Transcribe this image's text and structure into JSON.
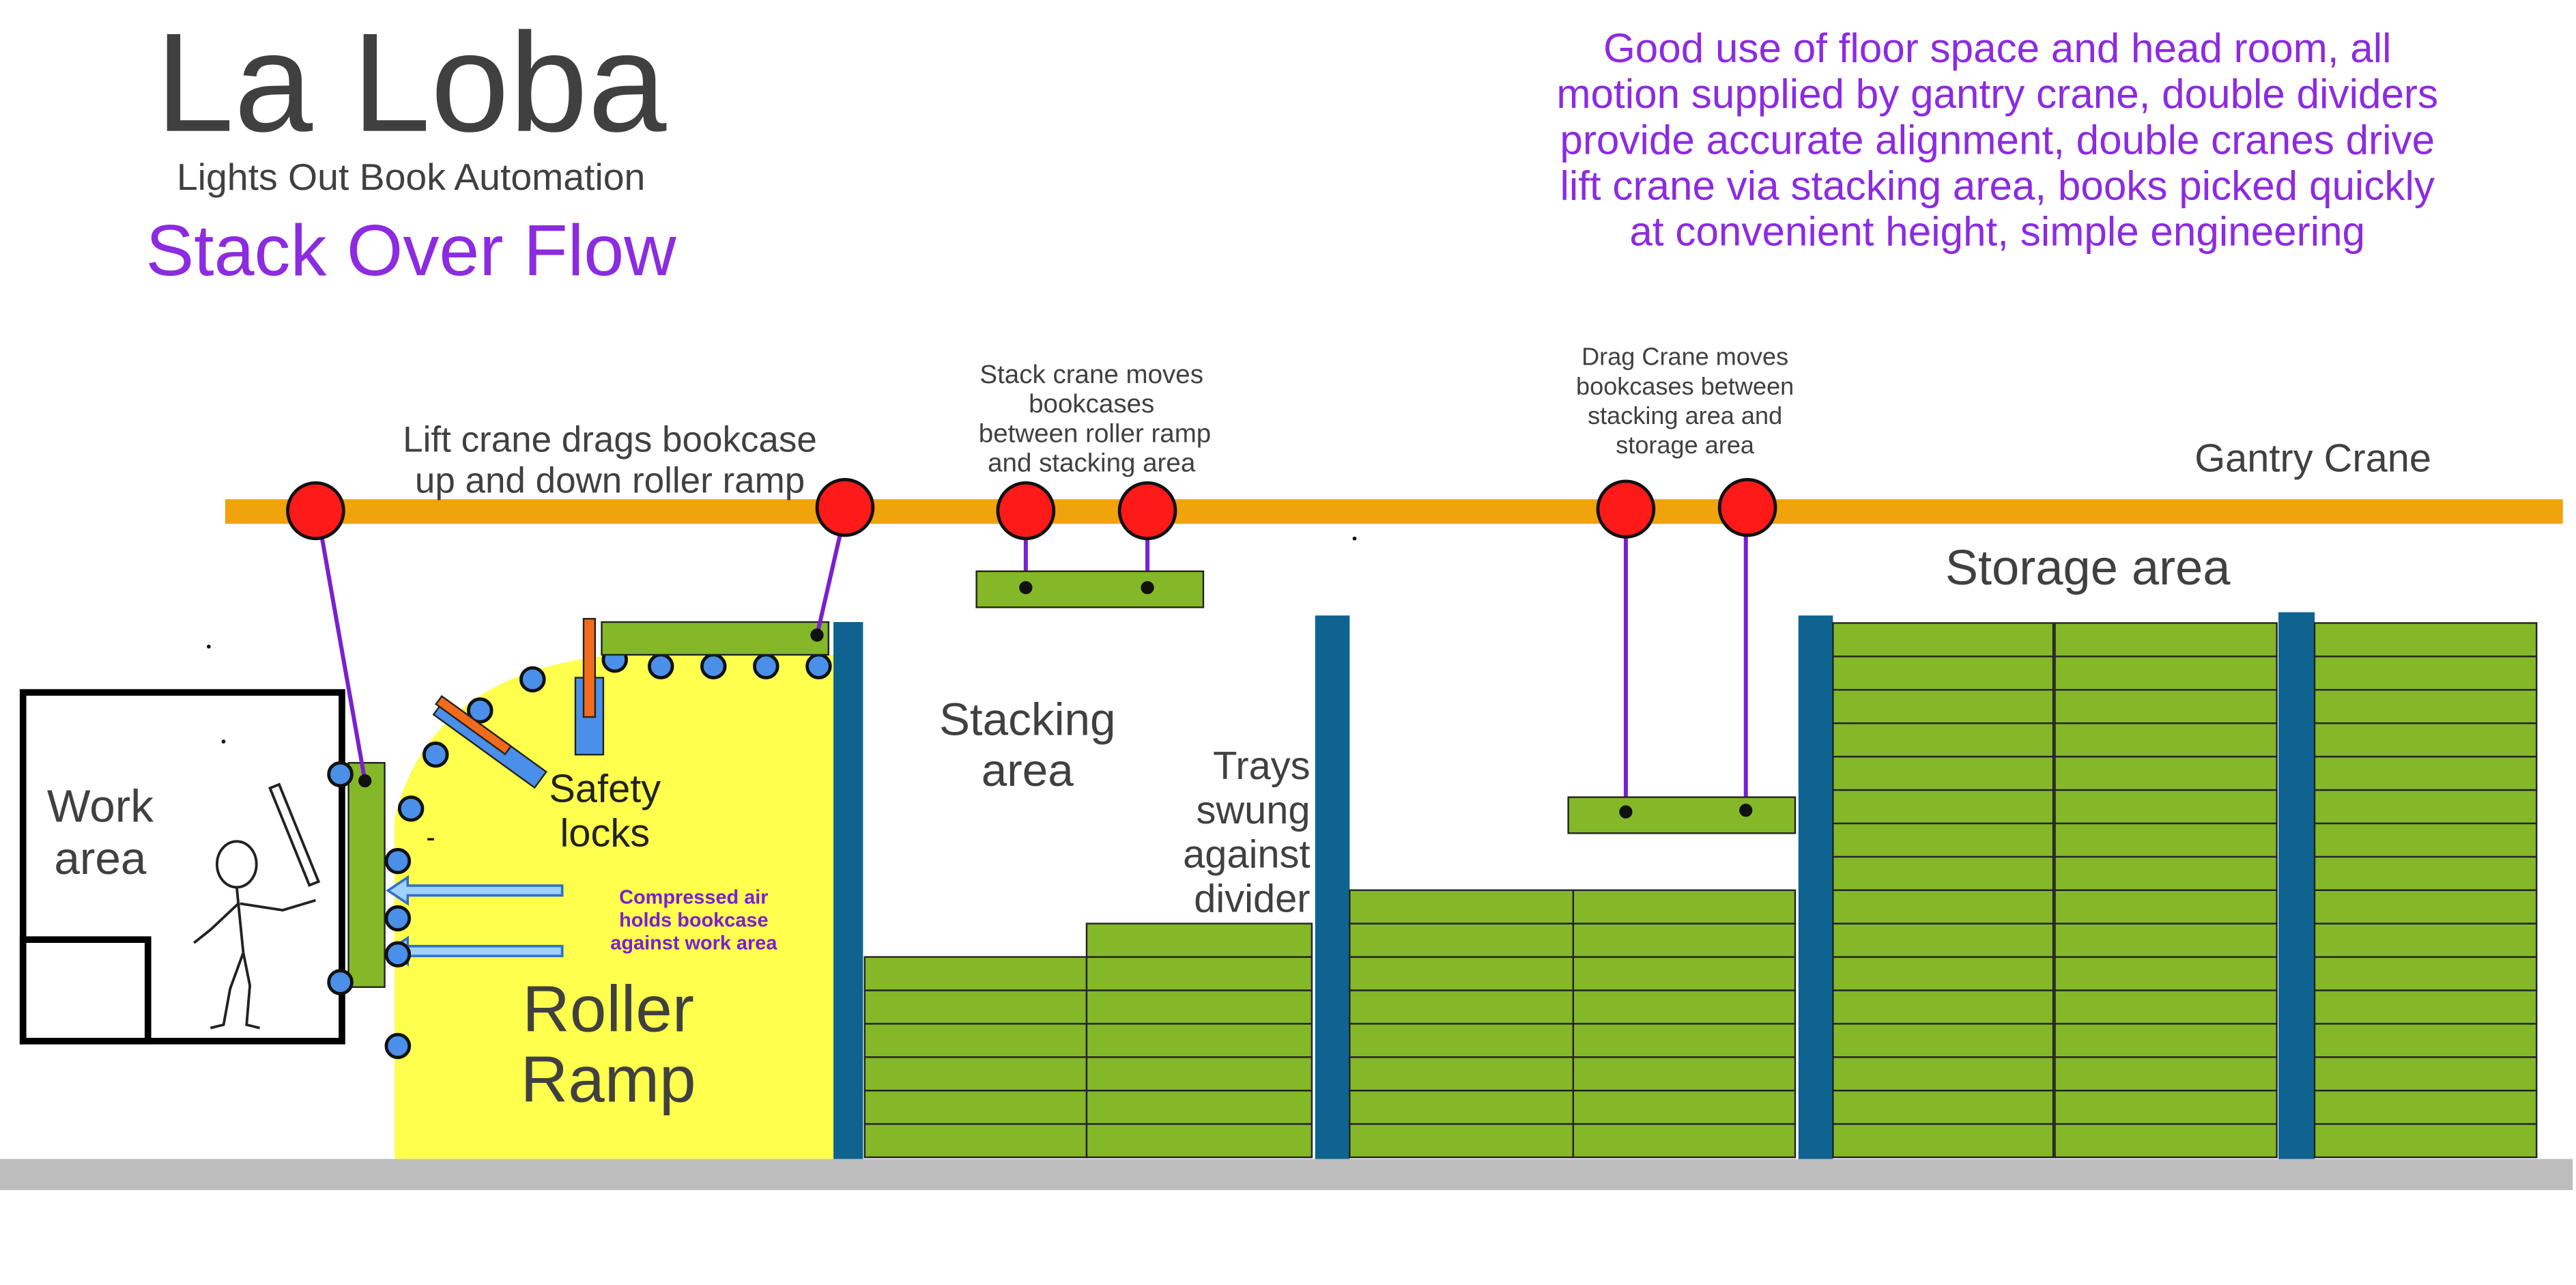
{
  "header": {
    "title": "La Loba",
    "subtitle": "Lights Out Book Automation",
    "tagline": "Stack Over Flow"
  },
  "summary": {
    "lines": [
      "Good use of floor space and head room, all",
      "motion supplied by gantry crane, double dividers",
      "provide accurate alignment, double cranes drive",
      "lift crane via stacking area, books picked quickly",
      "at convenient height, simple engineering"
    ]
  },
  "labels": {
    "gantry_crane": "Gantry Crane",
    "storage_area": "Storage area",
    "lift_crane": [
      "Lift crane drags bookcase",
      "up and down roller ramp"
    ],
    "stack_crane": [
      "Stack crane moves",
      "bookcases",
      "between roller ramp",
      "and stacking area"
    ],
    "drag_crane": [
      "Drag Crane moves",
      "bookcases between",
      "stacking area and",
      "storage area"
    ],
    "work_area": [
      "Work",
      "area"
    ],
    "safety_locks": [
      "Safety",
      "locks"
    ],
    "compressed_air": [
      "Compressed air",
      "holds bookcase",
      "against work area"
    ],
    "roller_ramp": [
      "Roller",
      "Ramp"
    ],
    "stacking_area": [
      "Stacking",
      "area"
    ],
    "trays_swung": [
      "Trays",
      "swung",
      "against",
      "divider"
    ]
  },
  "colors": {
    "gantry": "#f0a30a",
    "trolley": "#ff1a1a",
    "cable": "#7a1fd1",
    "tray": "#84b828",
    "divider": "#0e6391",
    "ramp": "#ffff4d",
    "roller": "#4a8fe8",
    "lock_orange": "#f26b1d",
    "floor": "#bdbdbd",
    "title_gray": "#404040",
    "accent_purple": "#8c2be0"
  }
}
